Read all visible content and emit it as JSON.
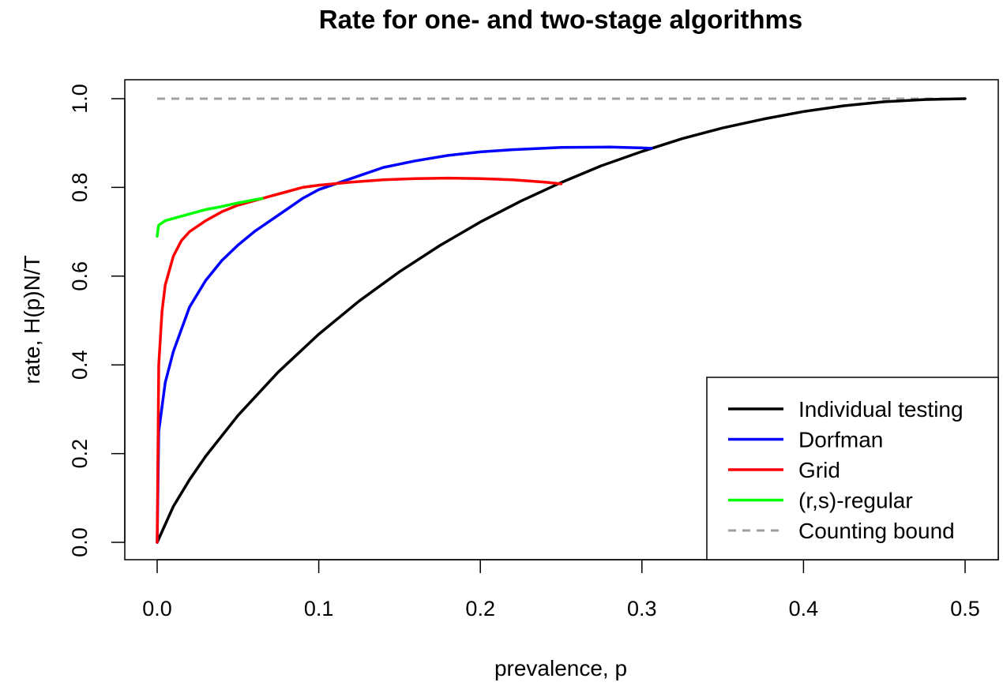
{
  "chart_data": {
    "type": "line",
    "title": "Rate for one- and two-stage algorithms",
    "xlabel": "prevalence, p",
    "ylabel": "rate, H(p)N/T",
    "xlim": [
      0,
      0.5
    ],
    "ylim": [
      0,
      1
    ],
    "xticks": [
      "0.0",
      "0.1",
      "0.2",
      "0.3",
      "0.4",
      "0.5"
    ],
    "yticks": [
      "0.0",
      "0.2",
      "0.4",
      "0.6",
      "0.8",
      "1.0"
    ],
    "legend_position": "bottom-right",
    "series": [
      {
        "name": "Individual testing",
        "color": "#000000",
        "style": "solid",
        "x": [
          0,
          0.01,
          0.02,
          0.03,
          0.05,
          0.075,
          0.1,
          0.125,
          0.15,
          0.175,
          0.2,
          0.225,
          0.25,
          0.275,
          0.3,
          0.325,
          0.35,
          0.375,
          0.4,
          0.425,
          0.45,
          0.475,
          0.5
        ],
        "y": [
          0,
          0.081,
          0.141,
          0.194,
          0.286,
          0.384,
          0.469,
          0.544,
          0.61,
          0.669,
          0.722,
          0.769,
          0.811,
          0.849,
          0.881,
          0.91,
          0.934,
          0.954,
          0.971,
          0.984,
          0.993,
          0.998,
          1.0
        ]
      },
      {
        "name": "Dorfman",
        "color": "#0000ff",
        "style": "solid",
        "x": [
          0,
          0.001,
          0.005,
          0.01,
          0.02,
          0.03,
          0.04,
          0.05,
          0.06,
          0.07,
          0.08,
          0.09,
          0.1,
          0.12,
          0.14,
          0.16,
          0.18,
          0.2,
          0.22,
          0.25,
          0.28,
          0.3,
          0.306
        ],
        "y": [
          0,
          0.25,
          0.36,
          0.43,
          0.53,
          0.59,
          0.635,
          0.67,
          0.7,
          0.725,
          0.75,
          0.775,
          0.795,
          0.82,
          0.845,
          0.86,
          0.872,
          0.88,
          0.885,
          0.89,
          0.891,
          0.889,
          0.888
        ]
      },
      {
        "name": "Grid",
        "color": "#ff0000",
        "style": "solid",
        "x": [
          0,
          0.001,
          0.003,
          0.005,
          0.01,
          0.015,
          0.02,
          0.03,
          0.04,
          0.05,
          0.06,
          0.07,
          0.08,
          0.09,
          0.1,
          0.12,
          0.14,
          0.16,
          0.18,
          0.2,
          0.22,
          0.24,
          0.25
        ],
        "y": [
          0,
          0.4,
          0.52,
          0.58,
          0.645,
          0.68,
          0.7,
          0.725,
          0.745,
          0.76,
          0.77,
          0.78,
          0.79,
          0.8,
          0.805,
          0.812,
          0.817,
          0.82,
          0.821,
          0.82,
          0.817,
          0.812,
          0.808
        ]
      },
      {
        "name": "(r,s)-regular",
        "color": "#00ff00",
        "style": "solid",
        "x": [
          0,
          0.0005,
          0.001,
          0.003,
          0.005,
          0.01,
          0.02,
          0.03,
          0.04,
          0.05,
          0.06,
          0.065
        ],
        "y": [
          0.69,
          0.705,
          0.715,
          0.72,
          0.725,
          0.73,
          0.74,
          0.75,
          0.757,
          0.765,
          0.772,
          0.775
        ]
      },
      {
        "name": "Counting bound",
        "color": "#a0a0a0",
        "style": "dashed",
        "x": [
          0,
          0.5
        ],
        "y": [
          1.0,
          1.0
        ]
      }
    ]
  }
}
